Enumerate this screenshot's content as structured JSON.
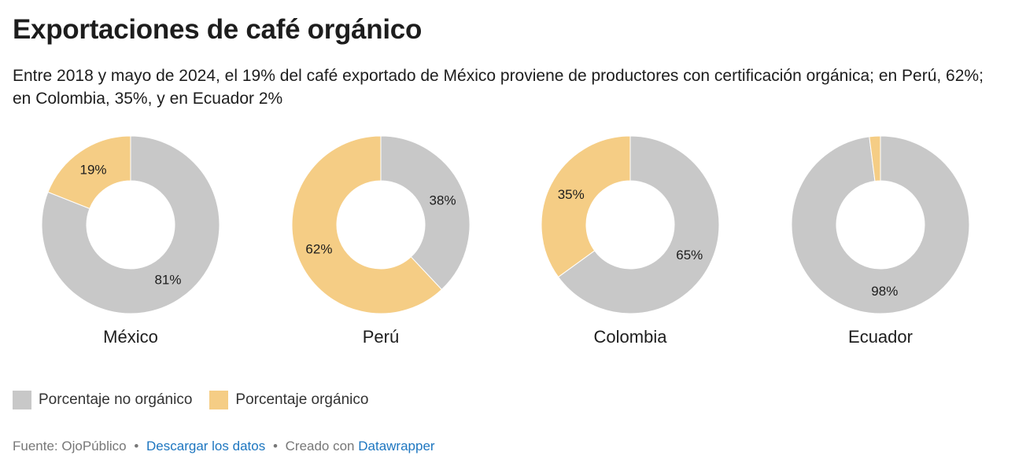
{
  "header": {
    "title": "Exportaciones de café orgánico",
    "subtitle": "Entre 2018 y mayo de 2024, el 19% del café exportado de México proviene de productores con certificación orgánica; en Perú, 62%; en Colombia, 35%, y en Ecuador 2%"
  },
  "chart_data": {
    "type": "pie",
    "subtype": "donut",
    "legend_position": "bottom-left",
    "series_colors": {
      "no_organico": "#c8c8c8",
      "organico": "#f5cd85"
    },
    "legend": [
      {
        "name": "Porcentaje no orgánico",
        "color": "#c8c8c8"
      },
      {
        "name": "Porcentaje orgánico",
        "color": "#f5cd85"
      }
    ],
    "charts": [
      {
        "label": "México",
        "organico": 19,
        "no_organico": 81,
        "organico_label": "19%",
        "no_organico_label": "81%"
      },
      {
        "label": "Perú",
        "organico": 62,
        "no_organico": 38,
        "organico_label": "62%",
        "no_organico_label": "38%"
      },
      {
        "label": "Colombia",
        "organico": 35,
        "no_organico": 65,
        "organico_label": "35%",
        "no_organico_label": "65%"
      },
      {
        "label": "Ecuador",
        "organico": 2,
        "no_organico": 98,
        "organico_label": "",
        "no_organico_label": "98%"
      }
    ]
  },
  "footer": {
    "source": "Fuente: OjoPúblico",
    "separator": "•",
    "download_link": "Descargar los datos",
    "created_with": "Creado con",
    "datawrapper_link": "Datawrapper"
  }
}
